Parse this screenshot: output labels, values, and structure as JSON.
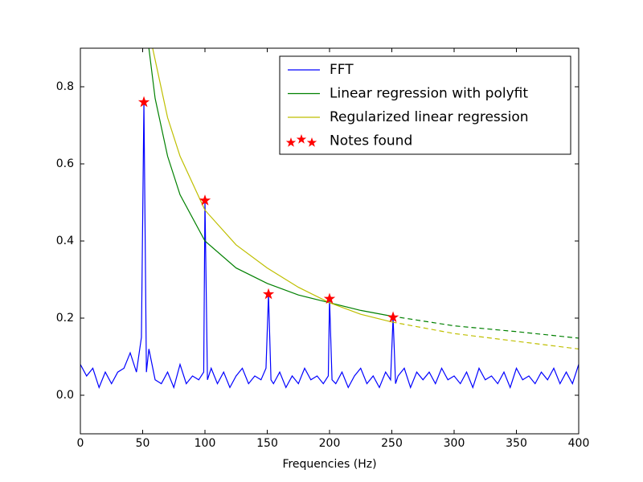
{
  "chart_data": {
    "type": "line",
    "xlabel": "Frequencies (Hz)",
    "xlim": [
      0,
      400
    ],
    "xticks": [
      0,
      50,
      100,
      150,
      200,
      250,
      300,
      350,
      400
    ],
    "ylim": [
      -0.1,
      0.9
    ],
    "yticks": [
      {
        "value": 0,
        "label": "0.0"
      },
      0.2,
      0.4,
      0.6,
      0.8
    ],
    "grid": false,
    "legend": "upper right",
    "series": [
      {
        "name": "FFT",
        "color": "#0000ff",
        "x": [
          0,
          5,
          10,
          15,
          20,
          25,
          30,
          35,
          40,
          45,
          49,
          51,
          53,
          55,
          60,
          65,
          70,
          75,
          80,
          85,
          90,
          95,
          99,
          100,
          102,
          105,
          110,
          115,
          120,
          125,
          130,
          135,
          140,
          145,
          149,
          151,
          153,
          155,
          160,
          165,
          170,
          175,
          180,
          185,
          190,
          195,
          199,
          200,
          202,
          205,
          210,
          215,
          220,
          225,
          230,
          235,
          240,
          245,
          249,
          251,
          253,
          255,
          260,
          265,
          270,
          275,
          280,
          285,
          290,
          295,
          300,
          305,
          310,
          315,
          320,
          325,
          330,
          335,
          340,
          345,
          350,
          355,
          360,
          365,
          370,
          375,
          380,
          385,
          390,
          395,
          400
        ],
        "values": [
          0.08,
          0.05,
          0.07,
          0.02,
          0.06,
          0.03,
          0.06,
          0.07,
          0.11,
          0.06,
          0.15,
          0.76,
          0.06,
          0.12,
          0.04,
          0.03,
          0.06,
          0.02,
          0.08,
          0.03,
          0.05,
          0.04,
          0.06,
          0.505,
          0.04,
          0.07,
          0.03,
          0.06,
          0.02,
          0.05,
          0.07,
          0.03,
          0.05,
          0.04,
          0.07,
          0.262,
          0.04,
          0.03,
          0.06,
          0.02,
          0.05,
          0.03,
          0.07,
          0.04,
          0.05,
          0.03,
          0.05,
          0.25,
          0.04,
          0.03,
          0.06,
          0.02,
          0.05,
          0.07,
          0.03,
          0.05,
          0.02,
          0.06,
          0.04,
          0.202,
          0.03,
          0.05,
          0.07,
          0.02,
          0.06,
          0.04,
          0.06,
          0.03,
          0.07,
          0.04,
          0.05,
          0.03,
          0.06,
          0.02,
          0.07,
          0.04,
          0.05,
          0.03,
          0.06,
          0.02,
          0.07,
          0.04,
          0.05,
          0.03,
          0.06,
          0.04,
          0.07,
          0.03,
          0.06,
          0.03,
          0.08
        ]
      },
      {
        "name": "Linear regression with polyfit",
        "color": "#008000",
        "dash_from": 250,
        "x": [
          52,
          55,
          60,
          70,
          80,
          100,
          125,
          150,
          175,
          200,
          225,
          250,
          300,
          350,
          400
        ],
        "values": [
          0.98,
          0.9,
          0.77,
          0.62,
          0.52,
          0.4,
          0.33,
          0.29,
          0.26,
          0.24,
          0.22,
          0.205,
          0.18,
          0.165,
          0.148
        ]
      },
      {
        "name": "Regularized linear regression",
        "color": "#bfbf00",
        "dash_from": 250,
        "x": [
          56,
          60,
          70,
          80,
          100,
          125,
          150,
          175,
          200,
          225,
          250,
          300,
          350,
          400
        ],
        "values": [
          0.93,
          0.87,
          0.72,
          0.62,
          0.48,
          0.39,
          0.33,
          0.28,
          0.24,
          0.21,
          0.19,
          0.16,
          0.14,
          0.12
        ]
      },
      {
        "name": "Notes found",
        "color": "#ff0000",
        "marker": "star",
        "x": [
          51,
          100,
          151,
          200,
          251
        ],
        "values": [
          0.76,
          0.505,
          0.262,
          0.25,
          0.202
        ]
      }
    ]
  }
}
